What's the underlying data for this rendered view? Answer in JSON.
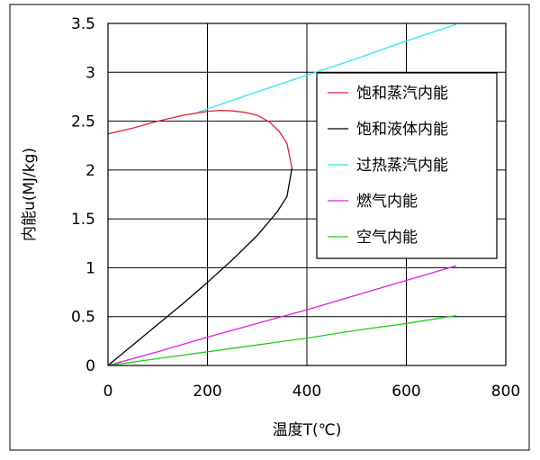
{
  "chart_data": {
    "type": "line",
    "xlabel": "温度T(℃)",
    "ylabel": "内能u(MJ/kg)",
    "xlim": [
      0,
      800
    ],
    "ylim": [
      0,
      3.5
    ],
    "x_ticks": [
      "0",
      "200",
      "400",
      "600",
      "800"
    ],
    "y_ticks": [
      "0",
      "0.5",
      "1",
      "1.5",
      "2",
      "2.5",
      "3",
      "3.5"
    ],
    "grid": true,
    "legend_position": "right",
    "series": [
      {
        "name": "饱和蒸汽内能",
        "color": "#e8203a",
        "points": [
          [
            0,
            2.37
          ],
          [
            50,
            2.43
          ],
          [
            100,
            2.5
          ],
          [
            150,
            2.56
          ],
          [
            200,
            2.6
          ],
          [
            225,
            2.61
          ],
          [
            250,
            2.605
          ],
          [
            275,
            2.59
          ],
          [
            300,
            2.56
          ],
          [
            325,
            2.49
          ],
          [
            345,
            2.39
          ],
          [
            360,
            2.27
          ],
          [
            370,
            2.02
          ]
        ]
      },
      {
        "name": "饱和液体内能",
        "color": "#000000",
        "points": [
          [
            0,
            0.0
          ],
          [
            50,
            0.21
          ],
          [
            100,
            0.42
          ],
          [
            150,
            0.63
          ],
          [
            200,
            0.85
          ],
          [
            250,
            1.08
          ],
          [
            300,
            1.33
          ],
          [
            340,
            1.57
          ],
          [
            360,
            1.73
          ],
          [
            370,
            2.02
          ]
        ]
      },
      {
        "name": "过热蒸汽内能",
        "color": "#2ee6ee",
        "points": [
          [
            180,
            2.59
          ],
          [
            300,
            2.8
          ],
          [
            400,
            2.97
          ],
          [
            500,
            3.14
          ],
          [
            600,
            3.32
          ],
          [
            700,
            3.49
          ]
        ]
      },
      {
        "name": "燃气内能",
        "color": "#e020e0",
        "points": [
          [
            0,
            0.0
          ],
          [
            100,
            0.14
          ],
          [
            200,
            0.29
          ],
          [
            300,
            0.43
          ],
          [
            400,
            0.57
          ],
          [
            500,
            0.72
          ],
          [
            600,
            0.87
          ],
          [
            700,
            1.02
          ]
        ]
      },
      {
        "name": "空气内能",
        "color": "#22cc22",
        "points": [
          [
            0,
            0.0
          ],
          [
            100,
            0.07
          ],
          [
            200,
            0.14
          ],
          [
            300,
            0.21
          ],
          [
            400,
            0.28
          ],
          [
            500,
            0.36
          ],
          [
            600,
            0.43
          ],
          [
            700,
            0.51
          ]
        ]
      }
    ]
  }
}
